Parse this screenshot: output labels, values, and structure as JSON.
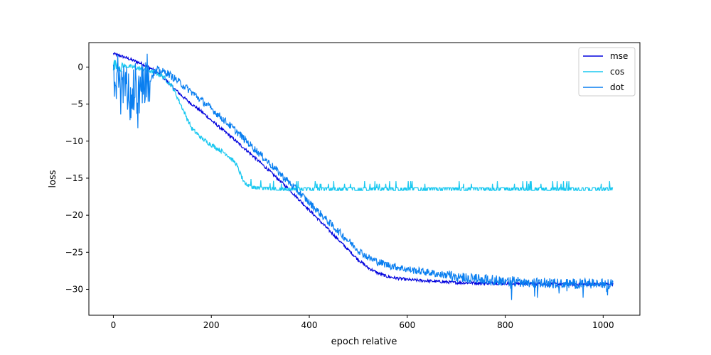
{
  "chart_data": {
    "type": "line",
    "title": "",
    "xlabel": "epoch relative",
    "ylabel": "loss",
    "xlim": [
      -50,
      1075
    ],
    "ylim": [
      -33.5,
      3.3
    ],
    "xticks": [
      0,
      200,
      400,
      600,
      800,
      1000
    ],
    "yticks": [
      0,
      -5,
      -10,
      -15,
      -20,
      -25,
      -30
    ],
    "grid": false,
    "legend": "top-right",
    "series": [
      {
        "name": "mse",
        "color": "#0000dd",
        "points": [
          [
            0,
            1.8
          ],
          [
            20,
            1.4
          ],
          [
            40,
            0.9
          ],
          [
            60,
            0.4
          ],
          [
            80,
            -0.3
          ],
          [
            100,
            -1.3
          ],
          [
            120,
            -2.6
          ],
          [
            140,
            -3.9
          ],
          [
            160,
            -5.0
          ],
          [
            180,
            -6.0
          ],
          [
            200,
            -7.2
          ],
          [
            240,
            -9.4
          ],
          [
            280,
            -11.7
          ],
          [
            320,
            -14.1
          ],
          [
            360,
            -16.6
          ],
          [
            400,
            -19.3
          ],
          [
            440,
            -22.0
          ],
          [
            480,
            -24.7
          ],
          [
            500,
            -26.0
          ],
          [
            520,
            -27.1
          ],
          [
            540,
            -27.8
          ],
          [
            560,
            -28.3
          ],
          [
            600,
            -28.7
          ],
          [
            700,
            -29.1
          ],
          [
            800,
            -29.2
          ],
          [
            900,
            -29.3
          ],
          [
            1000,
            -29.3
          ],
          [
            1020,
            -29.3
          ]
        ],
        "noise": 0.2
      },
      {
        "name": "cos",
        "color": "#1ac8f0",
        "points": [
          [
            0,
            0.3
          ],
          [
            40,
            0.0
          ],
          [
            80,
            -0.6
          ],
          [
            100,
            -1.2
          ],
          [
            120,
            -2.6
          ],
          [
            140,
            -5.4
          ],
          [
            160,
            -8.3
          ],
          [
            180,
            -9.6
          ],
          [
            200,
            -10.5
          ],
          [
            230,
            -11.7
          ],
          [
            250,
            -13.0
          ],
          [
            265,
            -15.3
          ],
          [
            280,
            -16.0
          ],
          [
            300,
            -16.2
          ],
          [
            350,
            -16.3
          ],
          [
            400,
            -16.3
          ],
          [
            500,
            -16.3
          ],
          [
            600,
            -16.3
          ],
          [
            700,
            -16.3
          ],
          [
            800,
            -16.3
          ],
          [
            900,
            -16.3
          ],
          [
            1020,
            -16.3
          ]
        ],
        "noise": 0.3
      },
      {
        "name": "dot",
        "color": "#0a7ff0",
        "points": [
          [
            0,
            0.0
          ],
          [
            20,
            -3.0
          ],
          [
            40,
            -3.2
          ],
          [
            60,
            -2.4
          ],
          [
            75,
            -1.5
          ],
          [
            90,
            -0.4
          ],
          [
            110,
            -0.8
          ],
          [
            130,
            -1.8
          ],
          [
            160,
            -3.4
          ],
          [
            200,
            -5.6
          ],
          [
            250,
            -8.6
          ],
          [
            300,
            -11.8
          ],
          [
            350,
            -15.0
          ],
          [
            400,
            -18.3
          ],
          [
            450,
            -21.6
          ],
          [
            500,
            -24.7
          ],
          [
            520,
            -25.7
          ],
          [
            540,
            -26.3
          ],
          [
            560,
            -26.7
          ],
          [
            600,
            -27.3
          ],
          [
            700,
            -28.3
          ],
          [
            800,
            -28.9
          ],
          [
            900,
            -29.2
          ],
          [
            1020,
            -29.3
          ]
        ],
        "noise": 0.5
      }
    ]
  }
}
